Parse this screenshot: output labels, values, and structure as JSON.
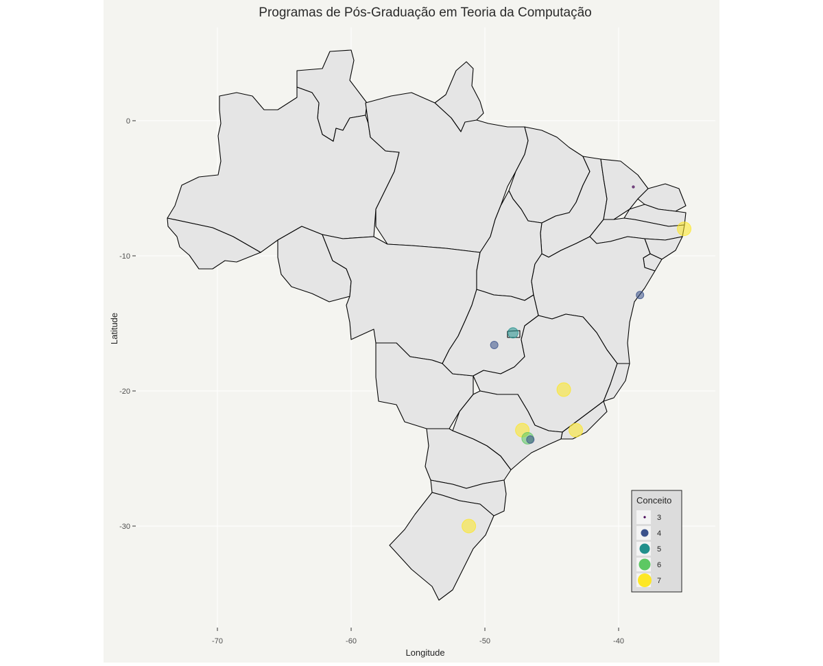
{
  "title": "Programas de Pós-Graduação em Teoria da Computação",
  "colors": {
    "background": "#ffffff",
    "panel": "#f4f4f0",
    "grid": "#ffffff",
    "land": "#e5e5e5",
    "border": "#000000",
    "legend_box": "#dcdcdc"
  },
  "chart_data": {
    "type": "scatter",
    "title": "Programas de Pós-Graduação em Teoria da Computação",
    "xlabel": "Longitude",
    "ylabel": "Latitude",
    "xlim": [
      -75.4,
      -32.5
    ],
    "ylim": [
      -34.2,
      5.2
    ],
    "x_ticks": [
      -70,
      -60,
      -50,
      -40
    ],
    "y_ticks": [
      0,
      -10,
      -20,
      -30
    ],
    "x_tick_labels": [
      "-70",
      "-60",
      "-50",
      "-40"
    ],
    "y_tick_labels": [
      "0",
      "-10",
      "-20",
      "-30"
    ],
    "grid": true,
    "legend": {
      "title": "Conceito",
      "position": "bottom-right",
      "entries": [
        {
          "label": "3",
          "color": "#440154",
          "size": 3
        },
        {
          "label": "4",
          "color": "#3b528b",
          "size": 4
        },
        {
          "label": "5",
          "color": "#21908c",
          "size": 5
        },
        {
          "label": "6",
          "color": "#5dc863",
          "size": 6
        },
        {
          "label": "7",
          "color": "#fde725",
          "size": 7
        }
      ]
    },
    "points": [
      {
        "lon": -38.9,
        "lat": -4.9,
        "conceito": 3
      },
      {
        "lon": -35.1,
        "lat": -8.0,
        "conceito": 7
      },
      {
        "lon": -38.4,
        "lat": -12.9,
        "conceito": 4
      },
      {
        "lon": -47.9,
        "lat": -15.7,
        "conceito": 5
      },
      {
        "lon": -49.3,
        "lat": -16.6,
        "conceito": 4
      },
      {
        "lon": -44.1,
        "lat": -19.9,
        "conceito": 7
      },
      {
        "lon": -47.2,
        "lat": -22.9,
        "conceito": 7
      },
      {
        "lon": -43.2,
        "lat": -22.9,
        "conceito": 7
      },
      {
        "lon": -46.8,
        "lat": -23.5,
        "conceito": 6
      },
      {
        "lon": -46.6,
        "lat": -23.6,
        "conceito": 4
      },
      {
        "lon": -51.2,
        "lat": -30.0,
        "conceito": 7
      }
    ]
  }
}
